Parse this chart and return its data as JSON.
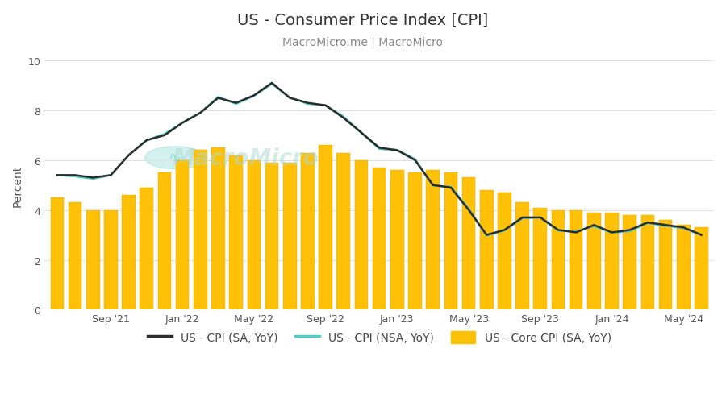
{
  "title": "US - Consumer Price Index [CPI]",
  "subtitle": "MacroMicro.me | MacroMicro",
  "ylabel": "Percent",
  "ylim": [
    0,
    10
  ],
  "yticks": [
    0,
    2,
    4,
    6,
    8,
    10
  ],
  "background_color": "#ffffff",
  "watermark": "MacroMicro",
  "xtick_labels": [
    "Sep '21",
    "Jan '22",
    "May '22",
    "Sep '22",
    "Jan '23",
    "May '23",
    "Sep '23",
    "Jan '24",
    "May '24"
  ],
  "xtick_positions": [
    3,
    7,
    11,
    15,
    19,
    23,
    27,
    31,
    35
  ],
  "cpi_sa": [
    5.4,
    5.4,
    5.3,
    5.4,
    6.2,
    6.8,
    7.0,
    7.5,
    7.9,
    8.5,
    8.3,
    8.6,
    9.1,
    8.5,
    8.3,
    8.2,
    7.7,
    7.1,
    6.5,
    6.4,
    6.0,
    5.0,
    4.9,
    4.0,
    3.0,
    3.2,
    3.7,
    3.7,
    3.2,
    3.1,
    3.4,
    3.1,
    3.2,
    3.5,
    3.4,
    3.3,
    3.0
  ],
  "cpi_nsa": [
    5.4,
    5.35,
    5.25,
    5.4,
    6.2,
    6.8,
    7.05,
    7.5,
    7.9,
    8.54,
    8.26,
    8.58,
    9.06,
    8.52,
    8.26,
    8.2,
    7.75,
    7.11,
    6.45,
    6.41,
    6.04,
    4.98,
    4.93,
    4.05,
    2.97,
    3.18,
    3.67,
    3.7,
    3.17,
    3.14,
    3.35,
    3.09,
    3.15,
    3.48,
    3.36,
    3.27,
    3.0
  ],
  "core_cpi": [
    4.5,
    4.3,
    4.0,
    4.0,
    4.6,
    4.9,
    5.5,
    6.0,
    6.4,
    6.5,
    6.2,
    6.0,
    5.9,
    5.9,
    6.3,
    6.6,
    6.3,
    6.0,
    5.7,
    5.6,
    5.5,
    5.6,
    5.5,
    5.3,
    4.8,
    4.7,
    4.3,
    4.1,
    4.0,
    4.0,
    3.9,
    3.9,
    3.8,
    3.8,
    3.6,
    3.4,
    3.3
  ],
  "bar_color": "#FFC107",
  "bar_edge_color": "#E6A800",
  "cpi_sa_color": "#2c2c2c",
  "cpi_nsa_color": "#4ECDC4",
  "grid_color": "#e0e0e0",
  "title_fontsize": 14,
  "subtitle_fontsize": 10,
  "axis_label_fontsize": 10,
  "tick_fontsize": 9,
  "legend_fontsize": 10
}
